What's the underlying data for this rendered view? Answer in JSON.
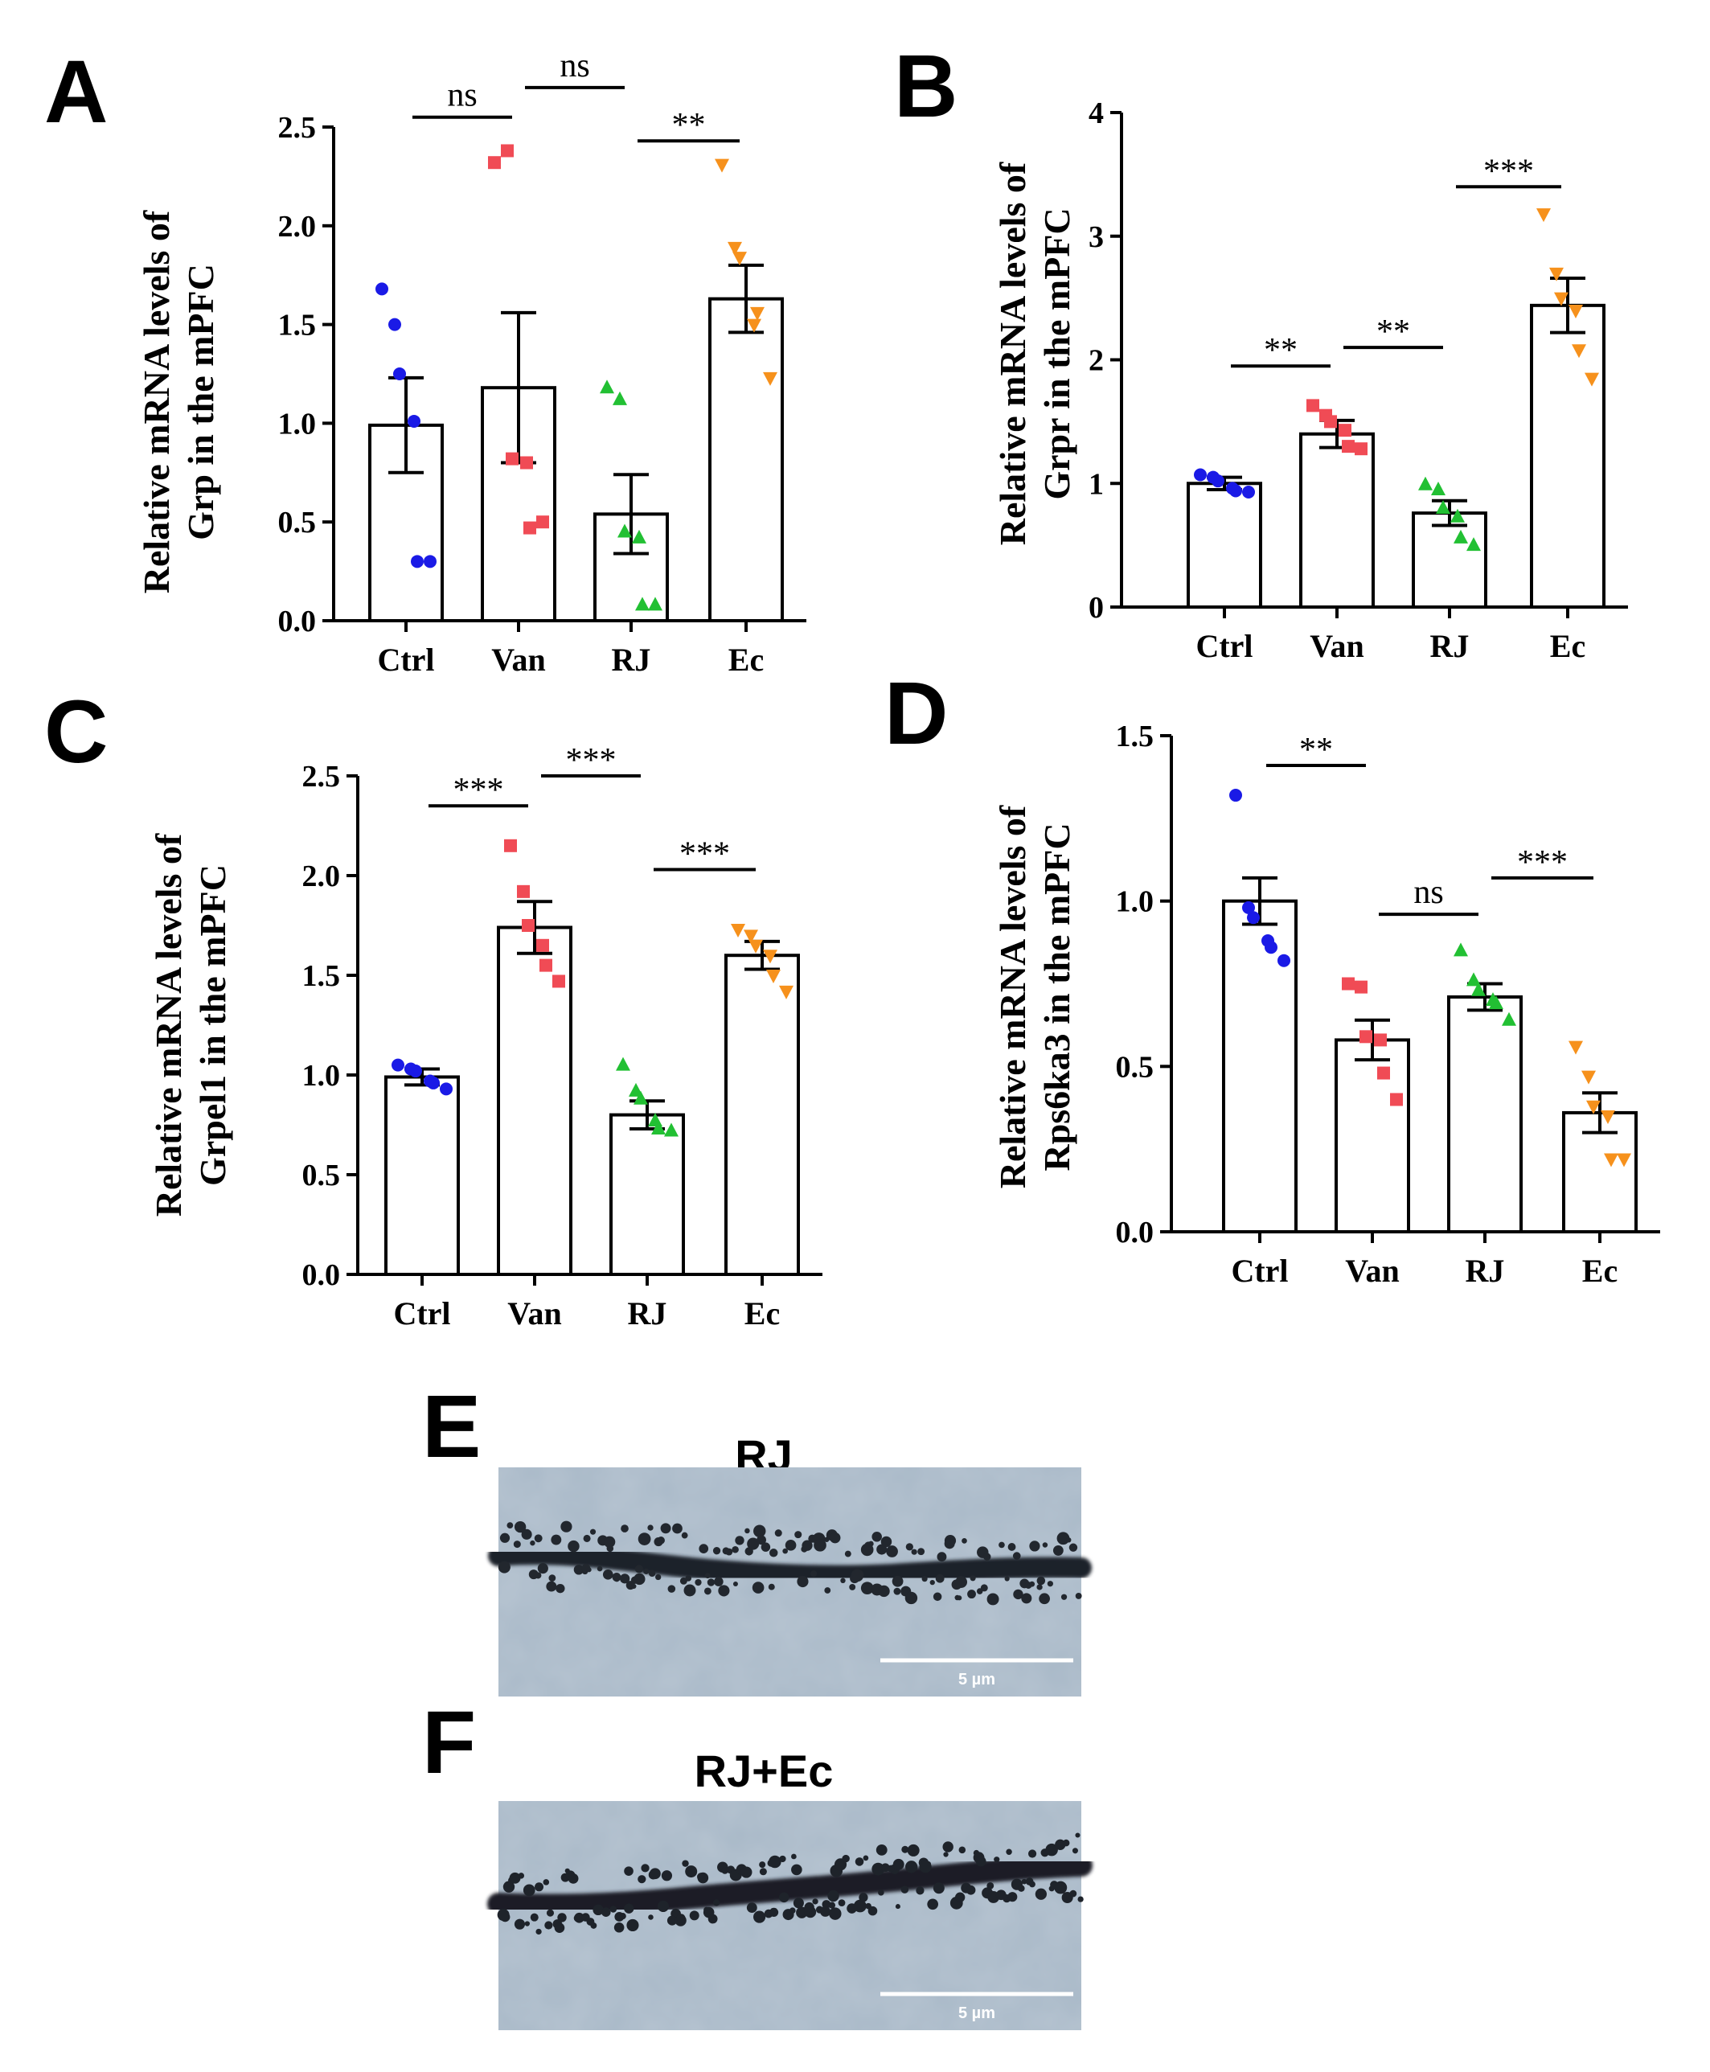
{
  "chart_data": [
    {
      "panel": "A",
      "type": "bar",
      "ylabel": [
        "Relative mRNA levels of",
        "Grp in the mPFC"
      ],
      "ylim": [
        0,
        2.5
      ],
      "ytick_labels": [
        "0.0",
        "0.5",
        "1.0",
        "1.5",
        "2.0",
        "2.5"
      ],
      "categories": [
        "Ctrl",
        "Van",
        "RJ",
        "Ec"
      ],
      "means": [
        0.99,
        1.18,
        0.54,
        1.63
      ],
      "sem": [
        0.24,
        0.38,
        0.2,
        0.17
      ],
      "points": [
        [
          1.68,
          1.5,
          1.25,
          1.01,
          0.3,
          0.3
        ],
        [
          2.32,
          2.38,
          0.82,
          0.8,
          0.47,
          0.5
        ],
        [
          1.18,
          1.12,
          0.45,
          0.42,
          0.08,
          0.08
        ],
        [
          2.31,
          1.89,
          1.84,
          1.5,
          1.56,
          1.23
        ]
      ],
      "comparisons": [
        {
          "from": 0,
          "to": 1,
          "label": "ns",
          "y": 2.55
        },
        {
          "from": 1,
          "to": 2,
          "label": "ns",
          "y": 2.7
        },
        {
          "from": 2,
          "to": 3,
          "label": "**",
          "y": 2.43
        }
      ]
    },
    {
      "panel": "B",
      "type": "bar",
      "ylabel": [
        "Relative mRNA levels of",
        "Grpr in the mPFC"
      ],
      "ylim": [
        0,
        4
      ],
      "ytick_labels": [
        "0",
        "1",
        "2",
        "3",
        "4"
      ],
      "categories": [
        "Ctrl",
        "Van",
        "RJ",
        "Ec"
      ],
      "means": [
        1.0,
        1.4,
        0.76,
        2.44
      ],
      "sem": [
        0.05,
        0.11,
        0.1,
        0.22
      ],
      "points": [
        [
          1.07,
          1.05,
          1.02,
          0.96,
          0.94,
          0.93
        ],
        [
          1.63,
          1.55,
          1.5,
          1.43,
          1.3,
          1.28
        ],
        [
          0.99,
          0.95,
          0.8,
          0.73,
          0.56,
          0.5
        ],
        [
          3.18,
          2.7,
          2.5,
          2.4,
          2.08,
          1.85
        ]
      ],
      "comparisons": [
        {
          "from": 0,
          "to": 1,
          "label": "**",
          "y": 1.95
        },
        {
          "from": 1,
          "to": 2,
          "label": "**",
          "y": 2.1
        },
        {
          "from": 2,
          "to": 3,
          "label": "***",
          "y": 3.4
        }
      ]
    },
    {
      "panel": "C",
      "type": "bar",
      "ylabel": [
        "Relative mRNA levels of",
        "Grpel1 in the mPFC"
      ],
      "ylim": [
        0,
        2.5
      ],
      "ytick_labels": [
        "0.0",
        "0.5",
        "1.0",
        "1.5",
        "2.0",
        "2.5"
      ],
      "categories": [
        "Ctrl",
        "Van",
        "RJ",
        "Ec"
      ],
      "means": [
        0.99,
        1.74,
        0.8,
        1.6
      ],
      "sem": [
        0.04,
        0.13,
        0.07,
        0.07
      ],
      "points": [
        [
          1.05,
          1.03,
          1.02,
          0.97,
          0.96,
          0.93
        ],
        [
          2.15,
          1.92,
          1.75,
          1.65,
          1.55,
          1.47
        ],
        [
          1.05,
          0.92,
          0.88,
          0.77,
          0.73,
          0.72
        ],
        [
          1.73,
          1.7,
          1.65,
          1.6,
          1.5,
          1.42
        ]
      ],
      "comparisons": [
        {
          "from": 0,
          "to": 1,
          "label": "***",
          "y": 2.35
        },
        {
          "from": 1,
          "to": 2,
          "label": "***",
          "y": 2.5
        },
        {
          "from": 2,
          "to": 3,
          "label": "***",
          "y": 2.03
        }
      ]
    },
    {
      "panel": "D",
      "type": "bar",
      "ylabel": [
        "Relative mRNA levels of",
        "Rps6ka3 in the mPFC"
      ],
      "ylim": [
        0,
        1.5
      ],
      "ytick_labels": [
        "0.0",
        "0.5",
        "1.0",
        "1.5"
      ],
      "categories": [
        "Ctrl",
        "Van",
        "RJ",
        "Ec"
      ],
      "means": [
        1.0,
        0.58,
        0.71,
        0.36
      ],
      "sem": [
        0.07,
        0.06,
        0.04,
        0.06
      ],
      "points": [
        [
          1.32,
          0.98,
          0.95,
          0.88,
          0.86,
          0.82
        ],
        [
          0.75,
          0.74,
          0.59,
          0.58,
          0.48,
          0.4
        ],
        [
          0.85,
          0.76,
          0.73,
          0.7,
          0.69,
          0.64
        ],
        [
          0.56,
          0.47,
          0.38,
          0.35,
          0.22,
          0.22
        ]
      ],
      "comparisons": [
        {
          "from": 0,
          "to": 1,
          "label": "**",
          "y": 1.41
        },
        {
          "from": 1,
          "to": 2,
          "label": "ns",
          "y": 0.96
        },
        {
          "from": 2,
          "to": 3,
          "label": "***",
          "y": 1.07
        }
      ]
    }
  ],
  "series_colors": [
    "#1a1ae6",
    "#f04b55",
    "#22c033",
    "#f6911c"
  ],
  "series_markers": [
    "circle",
    "square",
    "triangle-up",
    "triangle-down"
  ],
  "micrographs": [
    {
      "panel": "E",
      "title": "RJ",
      "scale_bar": "5 µm"
    },
    {
      "panel": "F",
      "title": "RJ+Ec",
      "scale_bar": "5 µm"
    }
  ]
}
